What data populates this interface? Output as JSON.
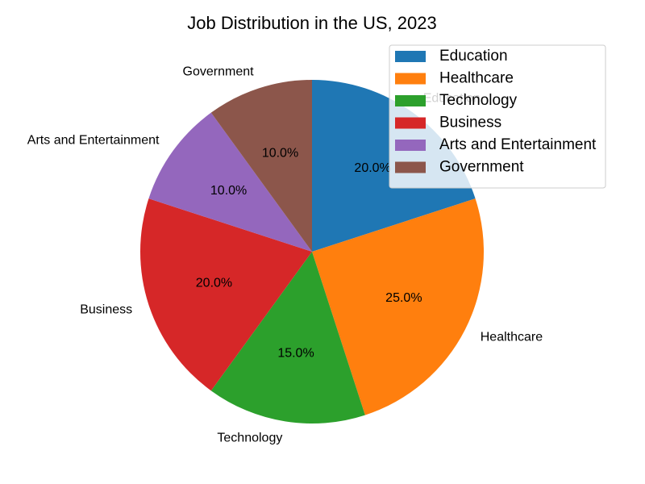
{
  "chart_data": {
    "type": "pie",
    "title": "Job Distribution in the US, 2023",
    "categories": [
      "Education",
      "Healthcare",
      "Technology",
      "Business",
      "Arts and Entertainment",
      "Government"
    ],
    "values": [
      20,
      25,
      15,
      20,
      10,
      10
    ],
    "percent_labels": [
      "20.0%",
      "25.0%",
      "15.0%",
      "20.0%",
      "10.0%",
      "10.0%"
    ],
    "colors": [
      "#1f77b4",
      "#ff7f0e",
      "#2ca02c",
      "#d62728",
      "#9467bd",
      "#8c564b"
    ],
    "start_angle_deg": 90,
    "direction": "clockwise",
    "legend": {
      "placement": "upper-right",
      "entries": [
        "Education",
        "Healthcare",
        "Technology",
        "Business",
        "Arts and Entertainment",
        "Government"
      ]
    }
  }
}
